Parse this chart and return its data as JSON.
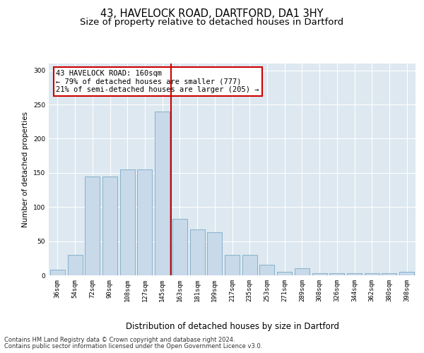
{
  "title1": "43, HAVELOCK ROAD, DARTFORD, DA1 3HY",
  "title2": "Size of property relative to detached houses in Dartford",
  "xlabel": "Distribution of detached houses by size in Dartford",
  "ylabel": "Number of detached properties",
  "categories": [
    "36sqm",
    "54sqm",
    "72sqm",
    "90sqm",
    "108sqm",
    "127sqm",
    "145sqm",
    "163sqm",
    "181sqm",
    "199sqm",
    "217sqm",
    "235sqm",
    "253sqm",
    "271sqm",
    "289sqm",
    "308sqm",
    "326sqm",
    "344sqm",
    "362sqm",
    "380sqm",
    "398sqm"
  ],
  "values": [
    8,
    30,
    145,
    145,
    155,
    155,
    240,
    83,
    67,
    63,
    30,
    30,
    15,
    5,
    10,
    3,
    3,
    3,
    3,
    3,
    5
  ],
  "bar_color": "#c8d9ea",
  "bar_edge_color": "#7aaac8",
  "ref_line_color": "#cc0000",
  "annotation_text": "43 HAVELOCK ROAD: 160sqm\n← 79% of detached houses are smaller (777)\n21% of semi-detached houses are larger (205) →",
  "annotation_box_color": "#ffffff",
  "annotation_box_edge": "#cc0000",
  "bg_color": "#dde8f0",
  "ylim": [
    0,
    310
  ],
  "yticks": [
    0,
    50,
    100,
    150,
    200,
    250,
    300
  ],
  "footer1": "Contains HM Land Registry data © Crown copyright and database right 2024.",
  "footer2": "Contains public sector information licensed under the Open Government Licence v3.0.",
  "title1_fontsize": 10.5,
  "title2_fontsize": 9.5,
  "xlabel_fontsize": 8.5,
  "ylabel_fontsize": 7.5,
  "tick_fontsize": 6.5,
  "annot_fontsize": 7.5,
  "footer_fontsize": 6.0
}
